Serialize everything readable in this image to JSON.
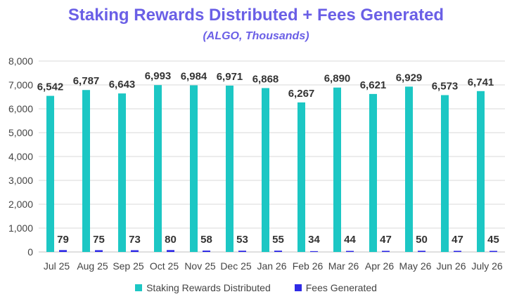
{
  "chart_data": {
    "type": "bar",
    "title": "Staking Rewards Distributed + Fees Generated",
    "subtitle": "(ALGO, Thousands)",
    "categories": [
      "Jul 25",
      "Aug 25",
      "Sep 25",
      "Oct 25",
      "Nov 25",
      "Dec 25",
      "Jan 26",
      "Feb 26",
      "Mar 26",
      "Apr 26",
      "May 26",
      "Jun 26",
      "July 26"
    ],
    "series": [
      {
        "name": "Staking Rewards Distributed",
        "color": "#1CC7C4",
        "values": [
          6542,
          6787,
          6643,
          6993,
          6984,
          6971,
          6868,
          6267,
          6890,
          6621,
          6929,
          6573,
          6741
        ],
        "labels": [
          "6,542",
          "6,787",
          "6,643",
          "6,993",
          "6,984",
          "6,971",
          "6,868",
          "6,267",
          "6,890",
          "6,621",
          "6,929",
          "6,573",
          "6,741"
        ]
      },
      {
        "name": "Fees Generated",
        "color": "#2F2BE6",
        "values": [
          79,
          75,
          73,
          80,
          58,
          53,
          55,
          34,
          44,
          47,
          50,
          47,
          45
        ],
        "labels": [
          "79",
          "75",
          "73",
          "80",
          "58",
          "53",
          "55",
          "34",
          "44",
          "47",
          "50",
          "47",
          "45"
        ]
      }
    ],
    "ylim": [
      0,
      8000
    ],
    "yticks": [
      "0",
      "1,000",
      "2,000",
      "3,000",
      "4,000",
      "5,000",
      "6,000",
      "7,000",
      "8,000"
    ],
    "ytick_values": [
      0,
      1000,
      2000,
      3000,
      4000,
      5000,
      6000,
      7000,
      8000
    ],
    "grid": true,
    "legend_position": "bottom"
  }
}
